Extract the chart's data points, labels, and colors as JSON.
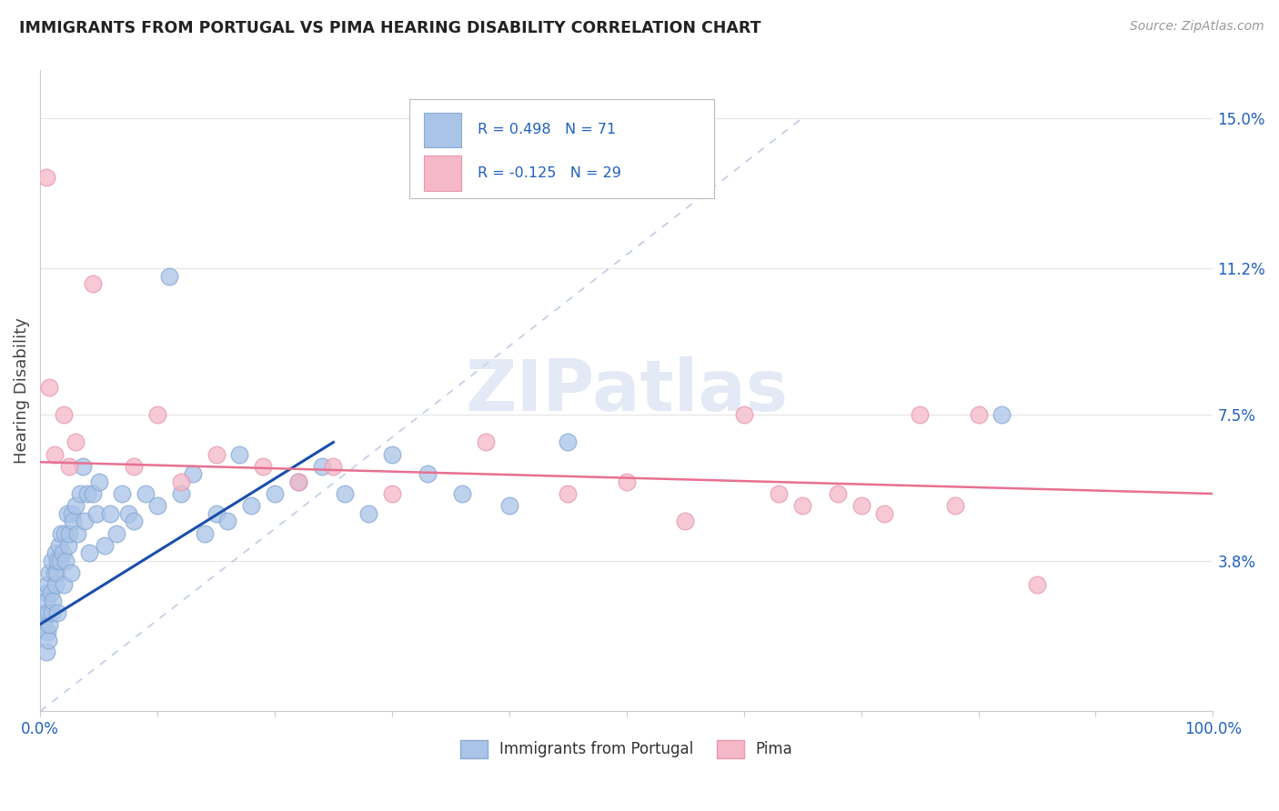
{
  "title": "IMMIGRANTS FROM PORTUGAL VS PIMA HEARING DISABILITY CORRELATION CHART",
  "source": "Source: ZipAtlas.com",
  "ylabel": "Hearing Disability",
  "xlim": [
    0.0,
    100.0
  ],
  "ylim": [
    0.0,
    16.2
  ],
  "yticks": [
    0.0,
    3.8,
    7.5,
    11.2,
    15.0
  ],
  "ytick_labels": [
    "",
    "3.8%",
    "7.5%",
    "11.2%",
    "15.0%"
  ],
  "xtick_positions": [
    0.0,
    10.0,
    20.0,
    30.0,
    40.0,
    50.0,
    60.0,
    70.0,
    80.0,
    90.0,
    100.0
  ],
  "xtick_labels_show": [
    "0.0%",
    "",
    "",
    "",
    "",
    "",
    "",
    "",
    "",
    "",
    "100.0%"
  ],
  "background_color": "#ffffff",
  "grid_color": "#e5e5e5",
  "blue_color": "#aac4e8",
  "blue_edge_color": "#88aad4",
  "pink_color": "#f4b8c8",
  "pink_edge_color": "#e898b0",
  "blue_line_color": "#1a4faa",
  "pink_line_color": "#e87090",
  "diag_line_color": "#b8c8e0",
  "legend_label1": "Immigrants from Portugal",
  "legend_label2": "Pima",
  "legend_R1": "0.498",
  "legend_N1": "71",
  "legend_R2": "-0.125",
  "legend_N2": "29",
  "blue_points_x": [
    0.3,
    0.4,
    0.5,
    0.5,
    0.5,
    0.6,
    0.6,
    0.7,
    0.7,
    0.8,
    0.8,
    0.9,
    1.0,
    1.0,
    1.1,
    1.2,
    1.3,
    1.3,
    1.4,
    1.5,
    1.5,
    1.6,
    1.7,
    1.8,
    1.9,
    2.0,
    2.1,
    2.2,
    2.3,
    2.4,
    2.5,
    2.6,
    2.7,
    2.8,
    3.0,
    3.2,
    3.4,
    3.6,
    3.8,
    4.0,
    4.2,
    4.5,
    4.8,
    5.0,
    5.5,
    6.0,
    6.5,
    7.0,
    7.5,
    8.0,
    9.0,
    10.0,
    11.0,
    12.0,
    13.0,
    14.0,
    15.0,
    16.0,
    17.0,
    18.0,
    20.0,
    22.0,
    24.0,
    26.0,
    28.0,
    30.0,
    33.0,
    36.0,
    40.0,
    45.0,
    82.0
  ],
  "blue_points_y": [
    2.2,
    2.5,
    3.0,
    2.8,
    1.5,
    2.0,
    3.2,
    2.5,
    1.8,
    3.5,
    2.2,
    3.0,
    2.5,
    3.8,
    2.8,
    3.5,
    3.2,
    4.0,
    3.5,
    3.8,
    2.5,
    4.2,
    3.8,
    4.5,
    4.0,
    3.2,
    4.5,
    3.8,
    5.0,
    4.2,
    4.5,
    3.5,
    5.0,
    4.8,
    5.2,
    4.5,
    5.5,
    6.2,
    4.8,
    5.5,
    4.0,
    5.5,
    5.0,
    5.8,
    4.2,
    5.0,
    4.5,
    5.5,
    5.0,
    4.8,
    5.5,
    5.2,
    11.0,
    5.5,
    6.0,
    4.5,
    5.0,
    4.8,
    6.5,
    5.2,
    5.5,
    5.8,
    6.2,
    5.5,
    5.0,
    6.5,
    6.0,
    5.5,
    5.2,
    6.8,
    7.5
  ],
  "pink_points_x": [
    0.5,
    0.8,
    1.2,
    2.0,
    2.5,
    3.0,
    4.5,
    8.0,
    10.0,
    12.0,
    15.0,
    19.0,
    22.0,
    25.0,
    30.0,
    38.0,
    45.0,
    50.0,
    55.0,
    60.0,
    63.0,
    65.0,
    68.0,
    70.0,
    72.0,
    75.0,
    78.0,
    80.0,
    85.0
  ],
  "pink_points_y": [
    13.5,
    8.2,
    6.5,
    7.5,
    6.2,
    6.8,
    10.8,
    6.2,
    7.5,
    5.8,
    6.5,
    6.2,
    5.8,
    6.2,
    5.5,
    6.8,
    5.5,
    5.8,
    4.8,
    7.5,
    5.5,
    5.2,
    5.5,
    5.2,
    5.0,
    7.5,
    5.2,
    7.5,
    3.2
  ],
  "blue_trend_x": [
    0.0,
    25.0
  ],
  "blue_trend_y": [
    2.2,
    6.8
  ],
  "pink_trend_x": [
    0.0,
    100.0
  ],
  "pink_trend_y": [
    6.3,
    5.5
  ],
  "diag_line_x": [
    0.0,
    65.0
  ],
  "diag_line_y": [
    0.0,
    15.0
  ]
}
